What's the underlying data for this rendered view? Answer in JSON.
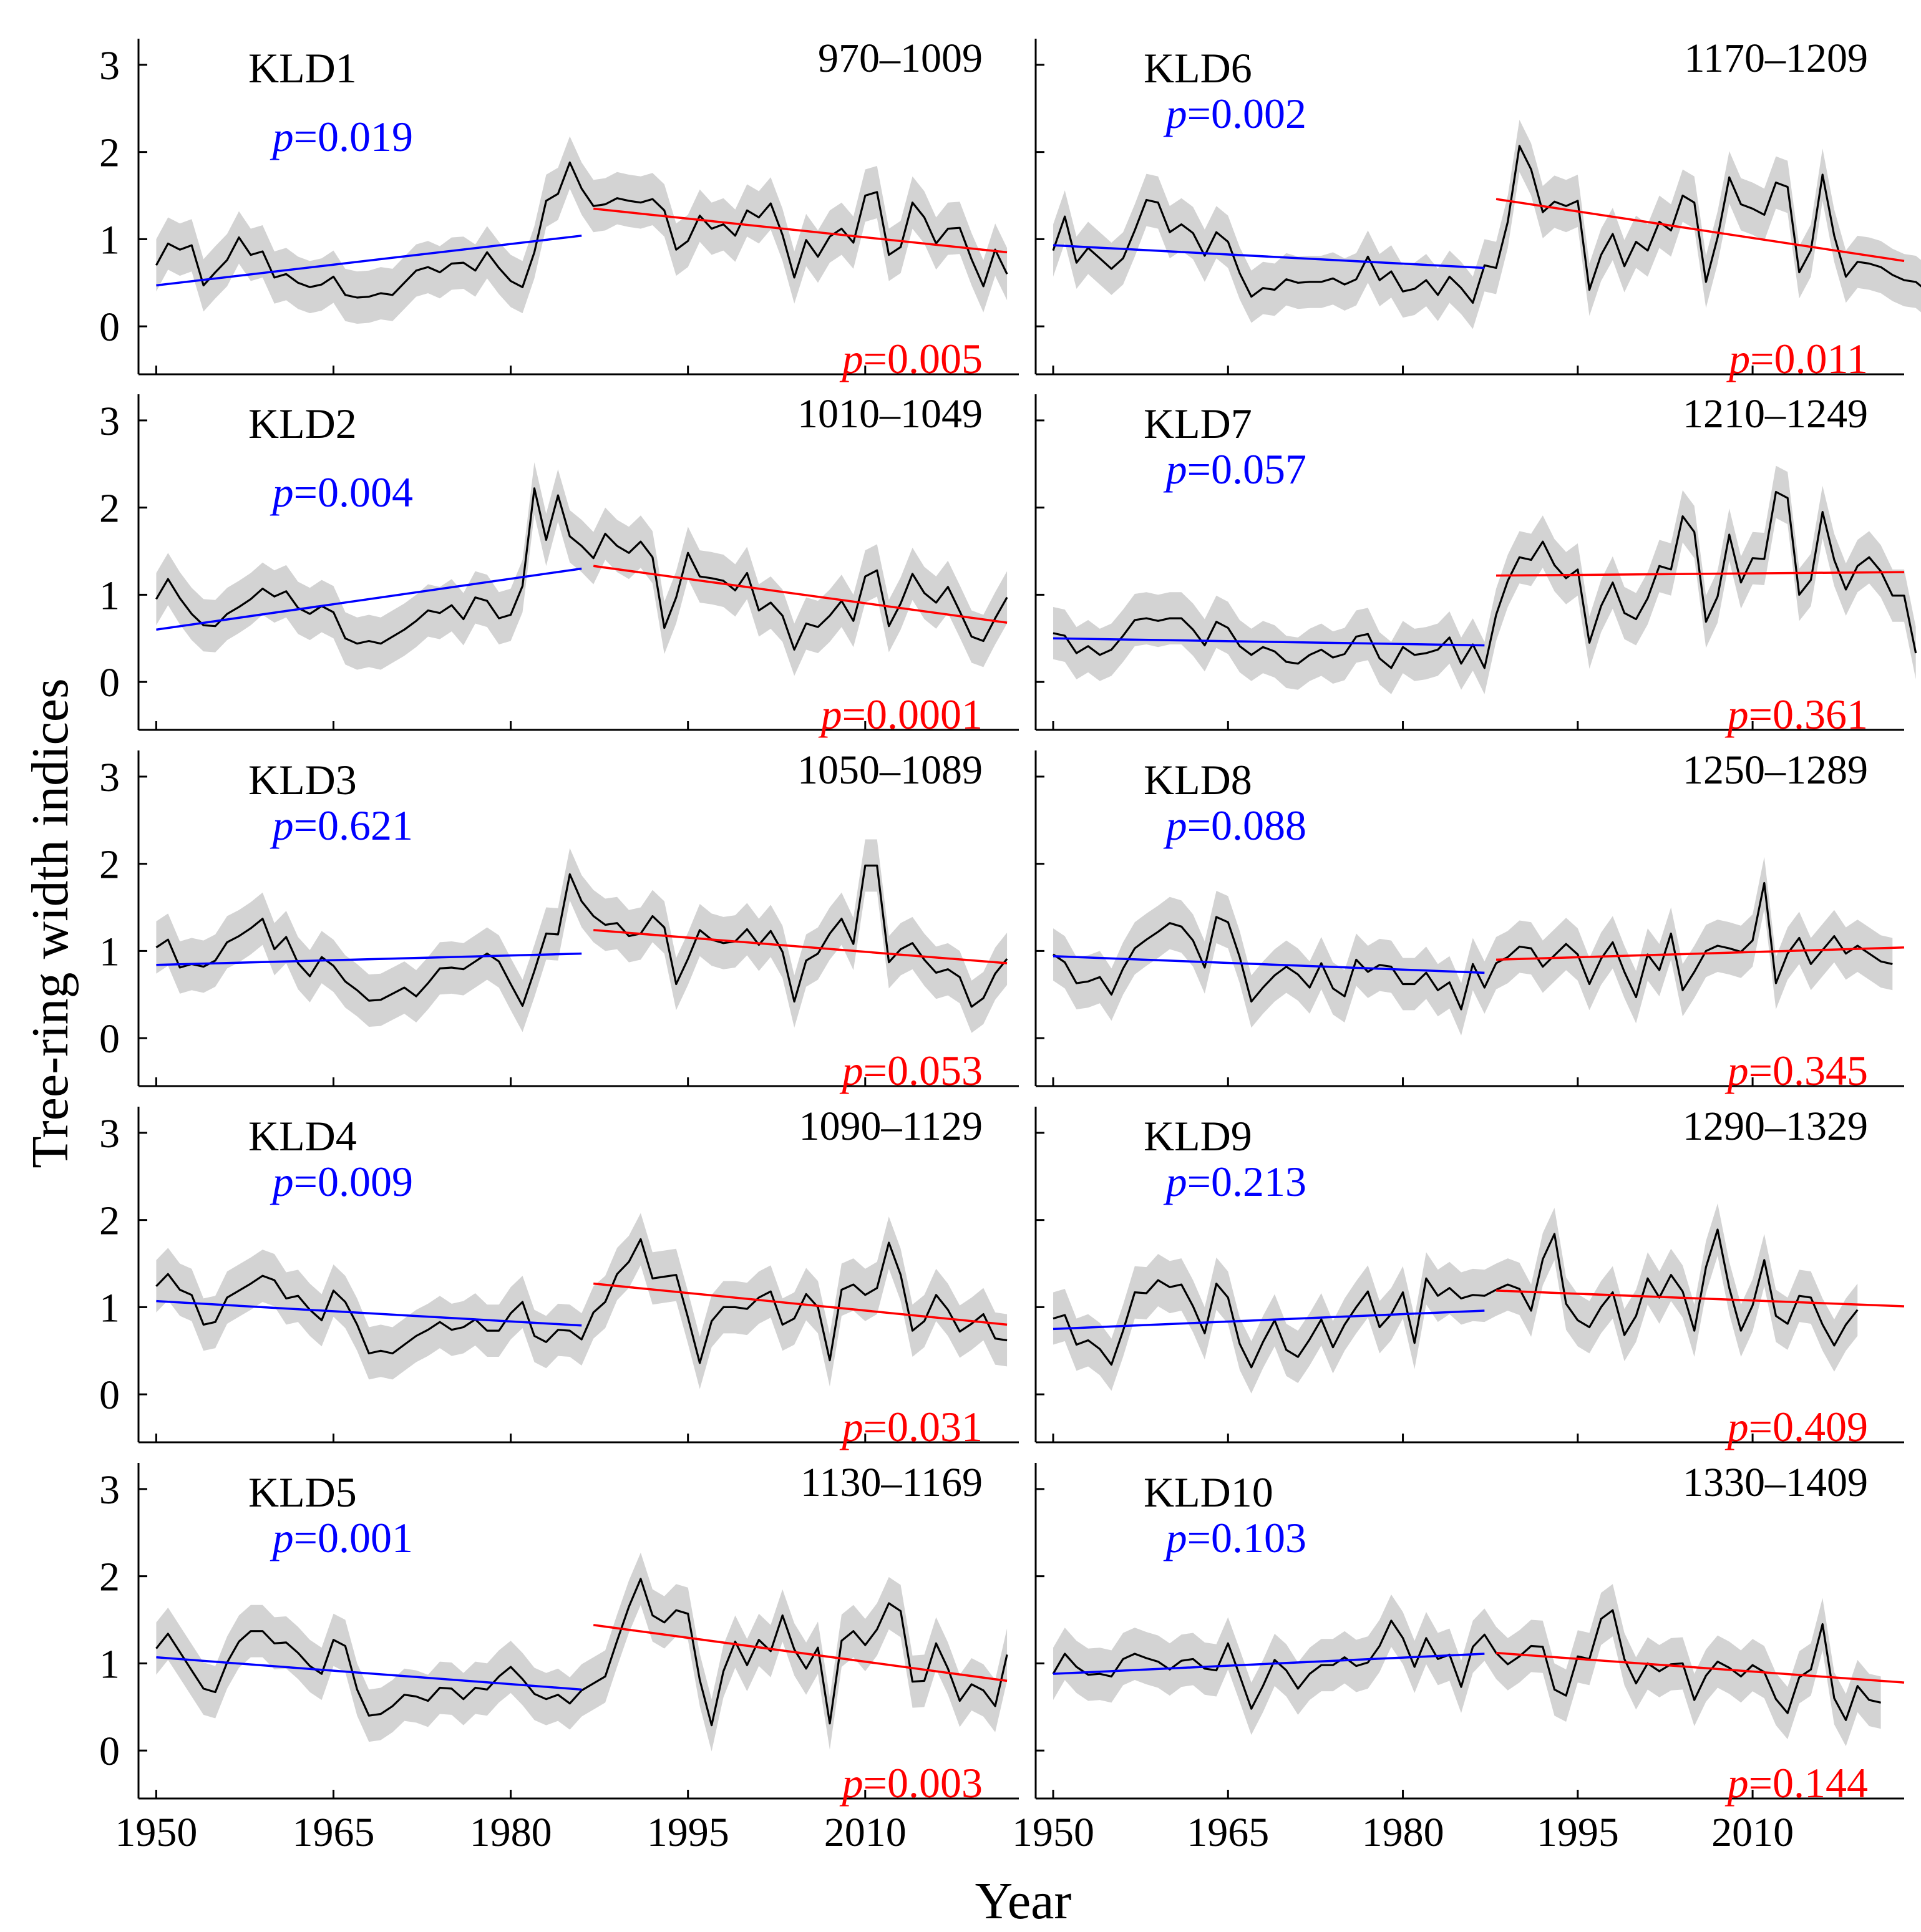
{
  "figure": {
    "ylabel": "Tree-ring width indices",
    "xlabel": "Year",
    "x_ticks": [
      "1950",
      "1965",
      "1980",
      "1995",
      "2010"
    ],
    "y_ticks": [
      "0",
      "1",
      "2",
      "3"
    ]
  },
  "colors": {
    "pre": "#0000ff",
    "post": "#ff0000",
    "series": "#000000",
    "band": "#d3d3d3"
  },
  "chart_data": [
    {
      "type": "line",
      "title": "KLD1",
      "period": "970–1009",
      "p_pre": "p=0.019",
      "p_post": "p=0.005",
      "x_start": 1950,
      "xlim": [
        1948.5,
        2023
      ],
      "ylim": [
        -0.55,
        3.3
      ],
      "values": [
        0.7,
        0.95,
        0.88,
        0.93,
        0.47,
        0.62,
        0.76,
        1.02,
        0.82,
        0.86,
        0.56,
        0.6,
        0.5,
        0.45,
        0.48,
        0.57,
        0.36,
        0.33,
        0.34,
        0.38,
        0.36,
        0.5,
        0.64,
        0.68,
        0.62,
        0.72,
        0.73,
        0.64,
        0.85,
        0.67,
        0.52,
        0.45,
        0.85,
        1.44,
        1.52,
        1.88,
        1.58,
        1.38,
        1.4,
        1.47,
        1.44,
        1.42,
        1.46,
        1.33,
        0.88,
        0.98,
        1.27,
        1.12,
        1.17,
        1.04,
        1.33,
        1.25,
        1.41,
        1.05,
        0.56,
        0.99,
        0.8,
        1.03,
        1.12,
        0.96,
        1.5,
        1.54,
        0.82,
        0.91,
        1.42,
        1.25,
        0.95,
        1.12,
        1.13,
        0.77,
        0.46,
        0.88,
        0.6
      ],
      "trend_pre": {
        "x": [
          1950,
          1986
        ],
        "y": [
          0.47,
          1.04
        ]
      },
      "trend_post": {
        "x": [
          1987,
          2022
        ],
        "y": [
          1.35,
          0.85
        ]
      }
    },
    {
      "type": "line",
      "title": "KLD2",
      "period": "1010–1049",
      "p_pre": "p=0.004",
      "p_post": "p=0.0001",
      "x_start": 1950,
      "xlim": [
        1948.5,
        2023
      ],
      "ylim": [
        -0.55,
        3.3
      ],
      "values": [
        0.95,
        1.18,
        0.96,
        0.78,
        0.65,
        0.64,
        0.78,
        0.86,
        0.95,
        1.07,
        0.98,
        1.04,
        0.85,
        0.78,
        0.87,
        0.8,
        0.5,
        0.44,
        0.47,
        0.44,
        0.52,
        0.6,
        0.7,
        0.82,
        0.79,
        0.88,
        0.72,
        0.97,
        0.93,
        0.73,
        0.77,
        1.1,
        2.22,
        1.63,
        2.14,
        1.67,
        1.56,
        1.42,
        1.7,
        1.56,
        1.48,
        1.61,
        1.43,
        0.62,
        0.97,
        1.48,
        1.21,
        1.19,
        1.16,
        1.05,
        1.25,
        0.82,
        0.91,
        0.76,
        0.37,
        0.67,
        0.63,
        0.76,
        0.93,
        0.7,
        1.21,
        1.28,
        0.64,
        0.9,
        1.24,
        1.02,
        0.91,
        1.09,
        0.81,
        0.52,
        0.47,
        0.73,
        0.97
      ],
      "trend_pre": {
        "x": [
          1950,
          1986
        ],
        "y": [
          0.6,
          1.3
        ]
      },
      "trend_post": {
        "x": [
          1987,
          2022
        ],
        "y": [
          1.33,
          0.68
        ]
      }
    },
    {
      "type": "line",
      "title": "KLD3",
      "period": "1050–1089",
      "p_pre": "p=0.621",
      "p_post": "p=0.053",
      "x_start": 1950,
      "xlim": [
        1948.5,
        2023
      ],
      "ylim": [
        -0.55,
        3.3
      ],
      "values": [
        1.04,
        1.13,
        0.81,
        0.85,
        0.82,
        0.89,
        1.1,
        1.17,
        1.26,
        1.37,
        1.02,
        1.16,
        0.86,
        0.71,
        0.93,
        0.83,
        0.65,
        0.55,
        0.43,
        0.44,
        0.51,
        0.58,
        0.48,
        0.63,
        0.8,
        0.81,
        0.79,
        0.88,
        0.97,
        0.88,
        0.62,
        0.37,
        0.77,
        1.2,
        1.19,
        1.88,
        1.57,
        1.4,
        1.3,
        1.32,
        1.17,
        1.2,
        1.4,
        1.27,
        0.62,
        0.91,
        1.24,
        1.13,
        1.09,
        1.11,
        1.25,
        1.07,
        1.23,
        0.99,
        0.42,
        0.89,
        0.97,
        1.2,
        1.37,
        1.08,
        1.98,
        1.98,
        0.87,
        1.02,
        1.09,
        0.9,
        0.75,
        0.79,
        0.7,
        0.36,
        0.46,
        0.74,
        0.91
      ],
      "trend_pre": {
        "x": [
          1950,
          1986
        ],
        "y": [
          0.84,
          0.97
        ]
      },
      "trend_post": {
        "x": [
          1987,
          2022
        ],
        "y": [
          1.24,
          0.86
        ]
      }
    },
    {
      "type": "line",
      "title": "KLD4",
      "period": "1090–1129",
      "p_pre": "p=0.009",
      "p_post": "p=0.031",
      "x_start": 1950,
      "xlim": [
        1948.5,
        2023
      ],
      "ylim": [
        -0.55,
        3.3
      ],
      "values": [
        1.24,
        1.38,
        1.2,
        1.14,
        0.8,
        0.83,
        1.11,
        1.19,
        1.27,
        1.36,
        1.31,
        1.1,
        1.13,
        0.97,
        0.85,
        1.19,
        1.06,
        0.8,
        0.47,
        0.5,
        0.47,
        0.57,
        0.67,
        0.74,
        0.83,
        0.74,
        0.77,
        0.86,
        0.73,
        0.73,
        0.93,
        1.06,
        0.67,
        0.6,
        0.74,
        0.73,
        0.63,
        0.94,
        1.06,
        1.38,
        1.52,
        1.78,
        1.33,
        1.35,
        1.37,
        0.88,
        0.36,
        0.84,
        1.0,
        1.0,
        0.98,
        1.11,
        1.18,
        0.8,
        0.87,
        1.15,
        1.0,
        0.39,
        1.2,
        1.26,
        1.14,
        1.22,
        1.74,
        1.37,
        0.73,
        0.84,
        1.14,
        0.97,
        0.72,
        0.81,
        0.92,
        0.64,
        0.62
      ],
      "trend_pre": {
        "x": [
          1950,
          1986
        ],
        "y": [
          1.07,
          0.79
        ]
      },
      "trend_post": {
        "x": [
          1987,
          2022
        ],
        "y": [
          1.27,
          0.8
        ]
      }
    },
    {
      "type": "line",
      "title": "KLD5",
      "period": "1130–1169",
      "p_pre": "p=0.001",
      "p_post": "p=0.003",
      "x_start": 1950,
      "xlim": [
        1948.5,
        2023
      ],
      "ylim": [
        -0.55,
        3.3
      ],
      "values": [
        1.17,
        1.34,
        1.13,
        0.92,
        0.71,
        0.67,
        1.01,
        1.25,
        1.37,
        1.37,
        1.23,
        1.24,
        1.12,
        0.97,
        0.88,
        1.27,
        1.2,
        0.7,
        0.4,
        0.42,
        0.51,
        0.64,
        0.62,
        0.57,
        0.72,
        0.71,
        0.59,
        0.72,
        0.7,
        0.85,
        0.96,
        0.82,
        0.65,
        0.59,
        0.64,
        0.54,
        0.69,
        0.77,
        0.85,
        1.26,
        1.65,
        1.97,
        1.55,
        1.47,
        1.61,
        1.57,
        0.81,
        0.29,
        0.91,
        1.25,
        0.98,
        1.27,
        1.14,
        1.55,
        1.16,
        0.94,
        1.18,
        0.31,
        1.26,
        1.37,
        1.21,
        1.39,
        1.69,
        1.6,
        0.79,
        0.8,
        1.23,
        0.94,
        0.57,
        0.76,
        0.69,
        0.51,
        1.1
      ],
      "trend_pre": {
        "x": [
          1950,
          1986
        ],
        "y": [
          1.07,
          0.7
        ]
      },
      "trend_post": {
        "x": [
          1987,
          2022
        ],
        "y": [
          1.44,
          0.8
        ]
      }
    },
    {
      "type": "line",
      "title": "KLD6",
      "period": "1170–1209",
      "p_pre": "p=0.002",
      "p_post": "p=0.011",
      "x_start": 1950,
      "xlim": [
        1948.5,
        2023
      ],
      "ylim": [
        -0.55,
        3.3
      ],
      "values": [
        0.87,
        1.26,
        0.73,
        0.9,
        0.78,
        0.66,
        0.78,
        1.1,
        1.45,
        1.42,
        1.08,
        1.17,
        1.07,
        0.81,
        1.08,
        0.97,
        0.61,
        0.34,
        0.44,
        0.42,
        0.54,
        0.5,
        0.51,
        0.51,
        0.55,
        0.48,
        0.54,
        0.8,
        0.53,
        0.63,
        0.4,
        0.43,
        0.53,
        0.36,
        0.57,
        0.44,
        0.27,
        0.7,
        0.67,
        1.2,
        2.07,
        1.8,
        1.31,
        1.43,
        1.38,
        1.44,
        0.42,
        0.82,
        1.06,
        0.69,
        0.97,
        0.87,
        1.2,
        1.1,
        1.5,
        1.42,
        0.51,
        1.02,
        1.71,
        1.4,
        1.35,
        1.28,
        1.65,
        1.6,
        0.62,
        0.87,
        1.74,
        1.04,
        0.57,
        0.74,
        0.72,
        0.68,
        0.59,
        0.53,
        0.51,
        0.4
      ],
      "trend_pre": {
        "x": [
          1950,
          1987
        ],
        "y": [
          0.93,
          0.67
        ]
      },
      "trend_post": {
        "x": [
          1988,
          2023
        ],
        "y": [
          1.46,
          0.75
        ]
      }
    },
    {
      "type": "line",
      "title": "KLD7",
      "period": "1210–1249",
      "p_pre": "p=0.057",
      "p_post": "p=0.361",
      "x_start": 1950,
      "xlim": [
        1948.5,
        2023
      ],
      "ylim": [
        -0.55,
        3.3
      ],
      "values": [
        0.56,
        0.53,
        0.33,
        0.41,
        0.31,
        0.37,
        0.53,
        0.71,
        0.73,
        0.7,
        0.73,
        0.73,
        0.6,
        0.42,
        0.69,
        0.62,
        0.41,
        0.31,
        0.4,
        0.35,
        0.23,
        0.21,
        0.31,
        0.37,
        0.28,
        0.32,
        0.52,
        0.55,
        0.27,
        0.16,
        0.4,
        0.31,
        0.33,
        0.37,
        0.51,
        0.21,
        0.43,
        0.16,
        0.77,
        1.16,
        1.43,
        1.4,
        1.61,
        1.34,
        1.19,
        1.29,
        0.45,
        0.87,
        1.14,
        0.79,
        0.72,
        0.96,
        1.33,
        1.29,
        1.9,
        1.72,
        0.69,
        0.98,
        1.69,
        1.14,
        1.42,
        1.41,
        2.18,
        2.11,
        1.0,
        1.17,
        1.95,
        1.4,
        1.06,
        1.33,
        1.43,
        1.27,
        0.99,
        0.99,
        0.33
      ],
      "trend_pre": {
        "x": [
          1950,
          1987
        ],
        "y": [
          0.5,
          0.42
        ]
      },
      "trend_post": {
        "x": [
          1988,
          2023
        ],
        "y": [
          1.22,
          1.26
        ]
      }
    },
    {
      "type": "line",
      "title": "KLD8",
      "period": "1250–1289",
      "p_pre": "p=0.088",
      "p_post": "p=0.345",
      "x_start": 1950,
      "xlim": [
        1948.5,
        2023
      ],
      "ylim": [
        -0.55,
        3.3
      ],
      "values": [
        0.96,
        0.87,
        0.63,
        0.65,
        0.7,
        0.5,
        0.8,
        1.03,
        1.13,
        1.22,
        1.32,
        1.28,
        1.12,
        0.81,
        1.39,
        1.33,
        0.93,
        0.42,
        0.58,
        0.72,
        0.82,
        0.73,
        0.58,
        0.86,
        0.57,
        0.48,
        0.9,
        0.76,
        0.84,
        0.82,
        0.62,
        0.62,
        0.75,
        0.55,
        0.64,
        0.33,
        0.85,
        0.58,
        0.86,
        0.93,
        1.05,
        1.03,
        0.82,
        0.95,
        1.08,
        0.96,
        0.62,
        0.91,
        1.1,
        0.76,
        0.47,
        0.96,
        0.78,
        1.2,
        0.55,
        0.76,
        1.0,
        1.06,
        1.03,
        0.99,
        1.12,
        1.78,
        0.63,
        0.97,
        1.15,
        0.85,
        1.01,
        1.17,
        0.97,
        1.06,
        0.97,
        0.88,
        0.85
      ],
      "trend_pre": {
        "x": [
          1950,
          1987
        ],
        "y": [
          0.94,
          0.75
        ]
      },
      "trend_post": {
        "x": [
          1988,
          2023
        ],
        "y": [
          0.9,
          1.04
        ]
      }
    },
    {
      "type": "line",
      "title": "KLD9",
      "period": "1290–1329",
      "p_pre": "p=0.213",
      "p_post": "p=0.409",
      "x_start": 1950,
      "xlim": [
        1948.5,
        2023
      ],
      "ylim": [
        -0.55,
        3.3
      ],
      "values": [
        0.87,
        0.91,
        0.57,
        0.62,
        0.52,
        0.34,
        0.73,
        1.17,
        1.16,
        1.31,
        1.23,
        1.26,
        1.01,
        0.7,
        1.27,
        1.11,
        0.58,
        0.31,
        0.6,
        0.85,
        0.51,
        0.43,
        0.63,
        0.86,
        0.54,
        0.8,
        1.0,
        1.18,
        0.77,
        0.92,
        1.17,
        0.59,
        1.33,
        1.13,
        1.22,
        1.1,
        1.14,
        1.13,
        1.2,
        1.26,
        1.21,
        0.96,
        1.55,
        1.84,
        1.04,
        0.85,
        0.77,
        1.0,
        1.17,
        0.68,
        0.9,
        1.33,
        1.11,
        1.37,
        1.18,
        0.73,
        1.46,
        1.89,
        1.22,
        0.73,
        1.02,
        1.54,
        0.9,
        0.81,
        1.13,
        1.11,
        0.8,
        0.56,
        0.8,
        0.97
      ],
      "trend_pre": {
        "x": [
          1950,
          1987
        ],
        "y": [
          0.75,
          0.96
        ]
      },
      "trend_post": {
        "x": [
          1988,
          2023
        ],
        "y": [
          1.19,
          1.01
        ]
      }
    },
    {
      "type": "line",
      "title": "KLD10",
      "period": "1330–1409",
      "p_pre": "p=0.103",
      "p_post": "p=0.144",
      "x_start": 1950,
      "xlim": [
        1948.5,
        2023
      ],
      "ylim": [
        -0.55,
        3.3
      ],
      "values": [
        0.88,
        1.11,
        0.96,
        0.87,
        0.88,
        0.85,
        1.05,
        1.11,
        1.06,
        1.02,
        0.93,
        1.03,
        1.05,
        0.94,
        0.92,
        1.23,
        0.86,
        0.48,
        0.74,
        1.04,
        0.92,
        0.71,
        0.88,
        0.98,
        0.98,
        1.07,
        0.97,
        1.01,
        1.2,
        1.49,
        1.29,
        0.96,
        1.29,
        1.05,
        1.1,
        0.73,
        1.19,
        1.33,
        1.12,
        0.99,
        1.08,
        1.2,
        1.19,
        0.7,
        0.63,
        1.08,
        1.05,
        1.51,
        1.61,
        1.05,
        0.77,
        1.0,
        0.91,
        0.99,
        1.0,
        0.58,
        0.86,
        1.02,
        0.95,
        0.85,
        0.98,
        0.9,
        0.59,
        0.43,
        0.84,
        0.93,
        1.45,
        0.6,
        0.35,
        0.74,
        0.58,
        0.55
      ],
      "trend_pre": {
        "x": [
          1950,
          1987
        ],
        "y": [
          0.88,
          1.11
        ]
      },
      "trend_post": {
        "x": [
          1988,
          2023
        ],
        "y": [
          1.12,
          0.78
        ]
      }
    }
  ]
}
